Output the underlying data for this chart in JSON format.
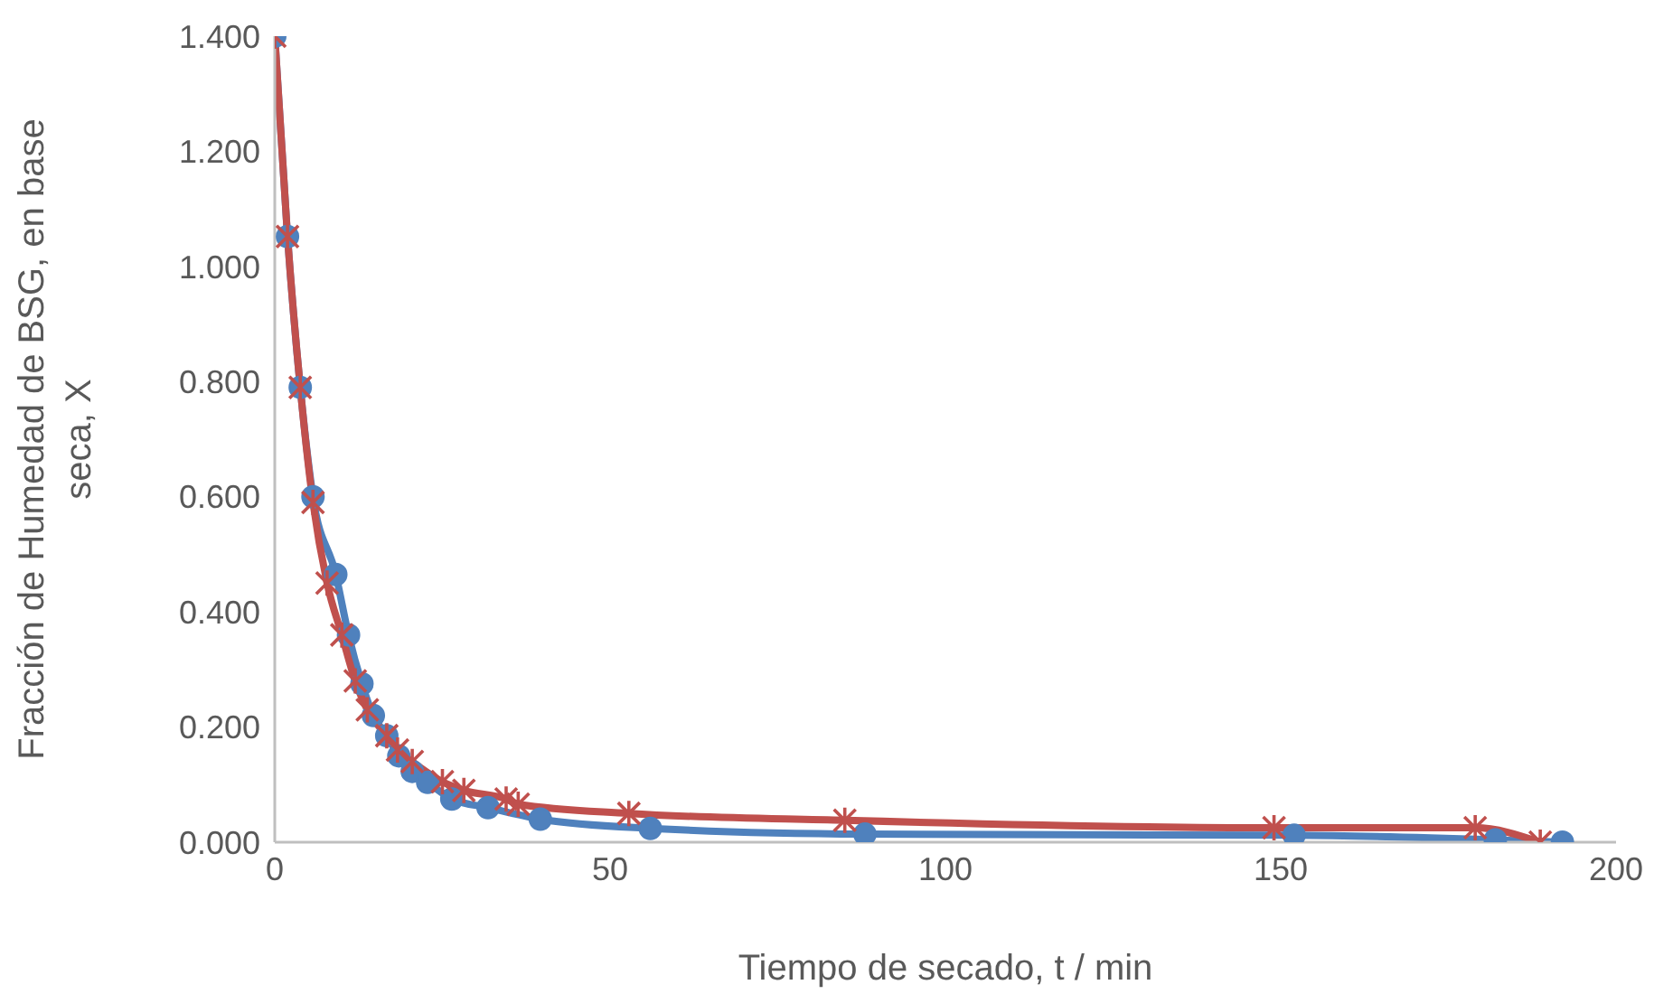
{
  "chart_data": {
    "type": "line",
    "xlabel": "Tiempo de secado, t / min",
    "ylabel": "Fracción de Humedad de BSG, en base seca, X",
    "xlim": [
      0,
      200
    ],
    "xticks": [
      0,
      50,
      100,
      150,
      200
    ],
    "ylim": [
      0,
      1.4
    ],
    "yticks": [
      {
        "value": 0,
        "label": "0.000"
      },
      {
        "value": 0.2,
        "label": "0.200"
      },
      {
        "value": 0.4,
        "label": "0.400"
      },
      {
        "value": 0.6,
        "label": "0.600"
      },
      {
        "value": 0.8,
        "label": "0.800"
      },
      {
        "value": 1.0,
        "label": "1.000"
      },
      {
        "value": 1.2,
        "label": "1.200"
      },
      {
        "value": 1.4,
        "label": "1.400"
      }
    ],
    "grid": false,
    "legend": false,
    "series": [
      {
        "color": "#4f81bd",
        "marker": "circle",
        "x": [
          0,
          1.9,
          3.8,
          5.7,
          9.1,
          11,
          13,
          14.7,
          16.7,
          18.5,
          20.5,
          22.8,
          26.4,
          31.8,
          39.6,
          56,
          88,
          152,
          182,
          192
        ],
        "values": [
          1.4,
          1.052,
          0.79,
          0.6,
          0.465,
          0.36,
          0.275,
          0.22,
          0.185,
          0.15,
          0.123,
          0.104,
          0.075,
          0.06,
          0.04,
          0.024,
          0.014,
          0.012,
          0.004,
          0
        ]
      },
      {
        "color": "#c0504d",
        "marker": "cross",
        "x": [
          0,
          1.9,
          3.8,
          5.7,
          7.8,
          10,
          12,
          13.8,
          16.7,
          18.3,
          20.5,
          25,
          28.2,
          34.5,
          36.3,
          52.8,
          85,
          149,
          179,
          188.7
        ],
        "values": [
          1.4,
          1.052,
          0.79,
          0.59,
          0.45,
          0.36,
          0.28,
          0.23,
          0.185,
          0.16,
          0.14,
          0.105,
          0.09,
          0.075,
          0.066,
          0.05,
          0.038,
          0.025,
          0.025,
          0
        ]
      }
    ]
  }
}
